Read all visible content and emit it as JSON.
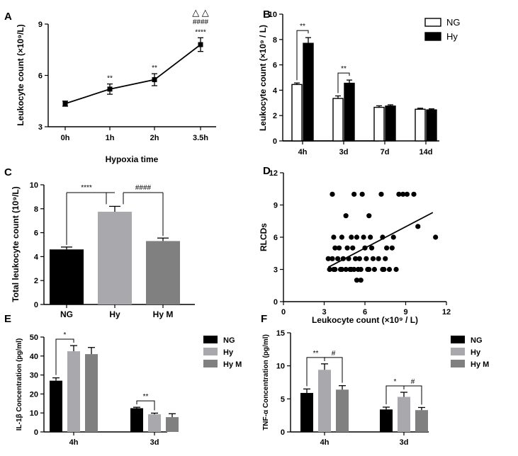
{
  "chart_data": [
    {
      "panel": "A",
      "type": "line",
      "categories": [
        "0h",
        "1h",
        "2h",
        "3.5h"
      ],
      "values": [
        4.35,
        5.2,
        5.75,
        7.8
      ],
      "errors": [
        0.15,
        0.3,
        0.35,
        0.4
      ],
      "annotations": [
        "",
        "**",
        "**",
        "****"
      ],
      "extra_annotations": [
        {
          "category": "3.5h",
          "lines": [
            "△ △",
            "####"
          ]
        }
      ],
      "xlabel": "Hypoxia time",
      "ylabel": "Leukocyte count (×10⁹/L)",
      "ylim": [
        3,
        9
      ],
      "yticks": [
        "3",
        "6",
        "9"
      ]
    },
    {
      "panel": "B",
      "type": "bar",
      "categories": [
        "4h",
        "3d",
        "7d",
        "14d"
      ],
      "series": [
        {
          "name": "NG",
          "values": [
            4.45,
            3.35,
            2.65,
            2.5
          ],
          "errors": [
            0.12,
            0.2,
            0.12,
            0.08
          ],
          "color": "#ffffff"
        },
        {
          "name": "Hy",
          "values": [
            7.7,
            4.55,
            2.75,
            2.45
          ],
          "errors": [
            0.45,
            0.25,
            0.1,
            0.08
          ],
          "color": "#000000"
        }
      ],
      "significance": [
        {
          "category": "4h",
          "label": "**"
        },
        {
          "category": "3d",
          "label": "**"
        }
      ],
      "ylabel": "Leukocyte count (×10⁹ / L)",
      "ylim": [
        0,
        10
      ],
      "yticks": [
        "0",
        "2",
        "4",
        "6",
        "8",
        "10"
      ]
    },
    {
      "panel": "C",
      "type": "bar",
      "categories": [
        "NG",
        "Hy",
        "Hy M"
      ],
      "values": [
        4.6,
        7.75,
        5.3
      ],
      "errors": [
        0.2,
        0.45,
        0.25
      ],
      "colors": [
        "#000000",
        "#a9a9ad",
        "#808080"
      ],
      "significance": [
        {
          "from": "NG",
          "to": "Hy",
          "label": "****"
        },
        {
          "from": "Hy",
          "to": "Hy M",
          "label": "####"
        }
      ],
      "ylabel": "Total leukocyte count (10⁹/L)",
      "ylim": [
        0,
        10
      ],
      "yticks": [
        "0",
        "2",
        "4",
        "6",
        "8",
        "10"
      ]
    },
    {
      "panel": "D",
      "type": "scatter",
      "x": [
        3.6,
        5.2,
        5.8,
        7.2,
        8.5,
        8.8,
        9.1,
        9.6,
        4.6,
        6.3,
        9.9,
        11.2,
        3.7,
        4.3,
        5.0,
        5.4,
        5.9,
        6.4,
        7.3,
        8.1,
        3.8,
        4.1,
        4.7,
        5.1,
        6.0,
        6.5,
        7.6,
        8.0,
        3.3,
        3.6,
        4.0,
        4.4,
        4.8,
        5.3,
        5.6,
        6.1,
        6.6,
        7.0,
        7.5,
        3.4,
        3.7,
        4.2,
        4.6,
        5.0,
        5.5,
        6.2,
        6.7,
        7.3,
        7.8,
        3.4,
        3.8,
        4.3,
        4.9,
        5.2,
        5.7,
        6.3,
        7.4,
        8.3,
        5.4,
        5.7
      ],
      "y": [
        10,
        10,
        10,
        10,
        10,
        10,
        10,
        10,
        8,
        8,
        7,
        6,
        6,
        6,
        6,
        6,
        6,
        6,
        6,
        6,
        5,
        5,
        5,
        5,
        5,
        5,
        5,
        5,
        4,
        4,
        4,
        4,
        4,
        4,
        4,
        4,
        4,
        4,
        4,
        3,
        3,
        3,
        3,
        3,
        3,
        3,
        3,
        3,
        3,
        3,
        3,
        3,
        3,
        3,
        3,
        3,
        3,
        3,
        2,
        2
      ],
      "trendline": {
        "x": [
          3.3,
          11
        ],
        "y": [
          3.2,
          8.3
        ]
      },
      "xlabel": "Leukocyte count (×10⁹ / L)",
      "ylabel": "RLCDs",
      "xlim": [
        0,
        12
      ],
      "ylim": [
        0,
        12
      ],
      "xticks": [
        "0",
        "3",
        "6",
        "9",
        "12"
      ],
      "yticks": [
        "0",
        "3",
        "6",
        "9",
        "12"
      ]
    },
    {
      "panel": "E",
      "type": "bar",
      "categories": [
        "4h",
        "3d"
      ],
      "series": [
        {
          "name": "NG",
          "values": [
            27,
            12.5
          ],
          "errors": [
            1.5,
            0.5
          ],
          "color": "#000000"
        },
        {
          "name": "Hy",
          "values": [
            42.5,
            9.3
          ],
          "errors": [
            3.0,
            0.6
          ],
          "color": "#a9a9ad"
        },
        {
          "name": "Hy M",
          "values": [
            41,
            7.8
          ],
          "errors": [
            3.5,
            1.8
          ],
          "color": "#808080"
        }
      ],
      "significance": [
        {
          "category": "4h",
          "label": "*"
        },
        {
          "category": "3d",
          "label": "**"
        }
      ],
      "ylabel": "IL-1β Concentration (pg/ml)",
      "ylim": [
        0,
        50
      ],
      "yticks": [
        "0",
        "10",
        "20",
        "30",
        "40",
        "50"
      ]
    },
    {
      "panel": "F",
      "type": "bar",
      "categories": [
        "4h",
        "3d"
      ],
      "series": [
        {
          "name": "NG",
          "values": [
            5.9,
            3.4
          ],
          "errors": [
            0.6,
            0.35
          ],
          "color": "#000000"
        },
        {
          "name": "Hy",
          "values": [
            9.4,
            5.3
          ],
          "errors": [
            0.9,
            0.7
          ],
          "color": "#a9a9ad"
        },
        {
          "name": "Hy M",
          "values": [
            6.4,
            3.3
          ],
          "errors": [
            0.6,
            0.4
          ],
          "color": "#808080"
        }
      ],
      "significance": [
        {
          "category": "4h",
          "labels": [
            "**",
            "#"
          ]
        },
        {
          "category": "3d",
          "labels": [
            "*",
            "#"
          ]
        }
      ],
      "ylabel": "TNF-α Concentration (pg/ml)",
      "ylim": [
        0,
        15
      ],
      "yticks": [
        "0",
        "5",
        "10",
        "15"
      ]
    }
  ]
}
